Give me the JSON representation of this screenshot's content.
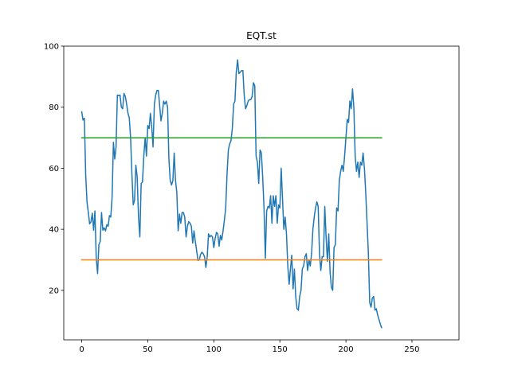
{
  "chart_data": {
    "type": "line",
    "title": "EQT.st",
    "xlabel": "",
    "ylabel": "",
    "xlim": [
      -13.6,
      285.6
    ],
    "ylim": [
      3.8,
      100
    ],
    "x_ticks": [
      0,
      50,
      100,
      150,
      200,
      250
    ],
    "y_ticks": [
      20,
      40,
      60,
      80,
      100
    ],
    "grid": false,
    "series": [
      {
        "color": "#1f77b4",
        "style": "line",
        "values": [
          78.5,
          75.8,
          76.4,
          58,
          49,
          45.5,
          41.8,
          42.4,
          45.3,
          39.7,
          46,
          30.5,
          25.5,
          35,
          36,
          45.5,
          39.7,
          40.5,
          39.5,
          41.5,
          41,
          44.5,
          44,
          50.5,
          68.5,
          63,
          67,
          84,
          83.8,
          84,
          80,
          79.5,
          84.5,
          83.5,
          81,
          78,
          76.5,
          70,
          58,
          48,
          49.5,
          61,
          57,
          44,
          37.5,
          55,
          55.5,
          64,
          70,
          64,
          74,
          73,
          78,
          73.5,
          67,
          81,
          84,
          85.5,
          85.5,
          80.5,
          75.5,
          78,
          82,
          81,
          82,
          80,
          63,
          56,
          54.5,
          56,
          65,
          56,
          52,
          39.5,
          45,
          42,
          45.5,
          45.5,
          44,
          37.5,
          41,
          42.5,
          42,
          41,
          35.5,
          39.5,
          36,
          33,
          29.8,
          30,
          31.8,
          32.5,
          32,
          31,
          27.5,
          31,
          38.5,
          37.5,
          38,
          37.5,
          34,
          37,
          39,
          38.5,
          34.5,
          38,
          36.5,
          39.5,
          43,
          47,
          58,
          66,
          68,
          69,
          73,
          81,
          82,
          91.5,
          95.5,
          91,
          91.5,
          92,
          92,
          84,
          79.5,
          80.5,
          82,
          82.5,
          82.5,
          83.5,
          88,
          87,
          64,
          62,
          55,
          66,
          65,
          57,
          47,
          30.5,
          46,
          47.5,
          47,
          51,
          42,
          51,
          47.5,
          51,
          42,
          48,
          47,
          60,
          50,
          40,
          44,
          38.5,
          28,
          22,
          27,
          31.5,
          20.5,
          27,
          18,
          14,
          13.5,
          18,
          20,
          27,
          28,
          31,
          32,
          26.5,
          30,
          28,
          32,
          40,
          44,
          47,
          49,
          47.5,
          32,
          26.5,
          31,
          31,
          47.5,
          37.5,
          29.5,
          38.5,
          26,
          21,
          20,
          34,
          35,
          47,
          46,
          56,
          59,
          61,
          59,
          64,
          70,
          76,
          75,
          82,
          79.5,
          86,
          80,
          64,
          59,
          62,
          57,
          62,
          61,
          65,
          60,
          52,
          42,
          32,
          16,
          14.5,
          17.5,
          18,
          13.5,
          14,
          12,
          10.5,
          9,
          7.8
        ]
      },
      {
        "color": "#ff7f0e",
        "style": "hline",
        "values": [
          30,
          30
        ]
      },
      {
        "color": "#2ca02c",
        "style": "hline",
        "values": [
          70,
          70
        ]
      }
    ]
  }
}
